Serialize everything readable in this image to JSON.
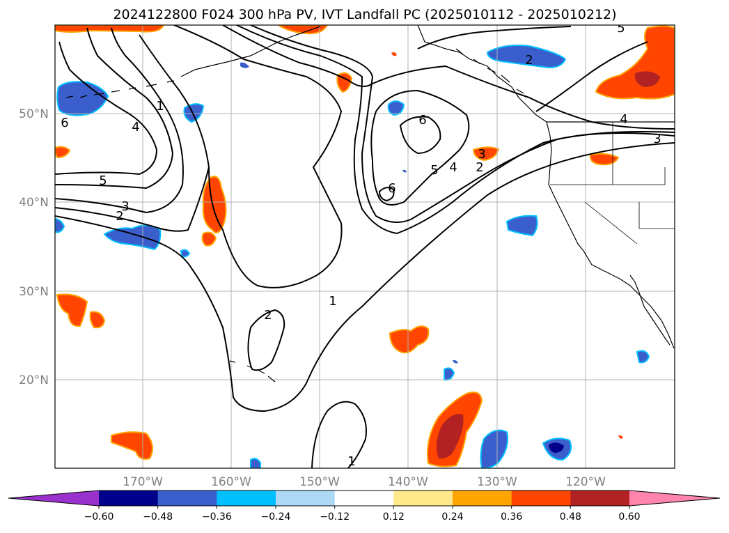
{
  "title": "2024122800 F024 300 hPa PV, IVT Landfall PC (2025010112 - 2025010212)",
  "map": {
    "lat_labels": [
      "50°N",
      "40°N",
      "30°N",
      "20°N"
    ],
    "lon_labels": [
      "170°W",
      "160°W",
      "150°W",
      "140°W",
      "130°W",
      "120°W"
    ],
    "extent": {
      "lon_min": -180,
      "lon_max": -110,
      "lat_min": 10,
      "lat_max": 60
    },
    "contour_labels": [
      "1",
      "2",
      "3",
      "4",
      "5",
      "6"
    ],
    "contour_color": "#000000",
    "coastline_color": "#000000",
    "gridline_color": "#b0b0b0"
  },
  "colorbar": {
    "tick_labels": [
      "−0.60",
      "−0.48",
      "−0.36",
      "−0.24",
      "−0.12",
      "0.12",
      "0.24",
      "0.36",
      "0.48",
      "0.60"
    ],
    "bins": [
      {
        "color": "#9932cc"
      },
      {
        "color": "#00008b"
      },
      {
        "color": "#3a5fcd"
      },
      {
        "color": "#00bfff"
      },
      {
        "color": "#add8f6"
      },
      {
        "color": "#ffffff"
      },
      {
        "color": "#ffe98a"
      },
      {
        "color": "#ffa500"
      },
      {
        "color": "#ff4500"
      },
      {
        "color": "#b22222"
      },
      {
        "color": "#ff85ad"
      }
    ]
  }
}
